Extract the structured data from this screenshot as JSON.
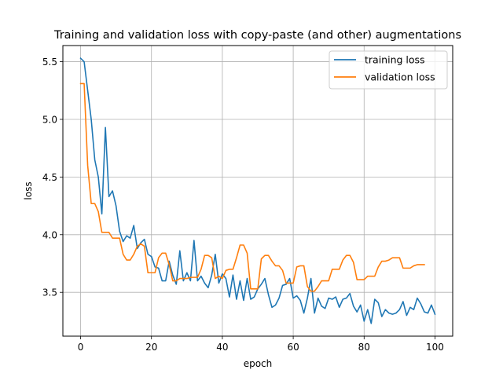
{
  "chart_data": {
    "type": "line",
    "title": "Training and validation loss with copy-paste (and other) augmentations",
    "xlabel": "epoch",
    "ylabel": "loss",
    "xlim": [
      -5,
      105
    ],
    "ylim": [
      3.12,
      5.64
    ],
    "xticks": [
      0,
      20,
      40,
      60,
      80,
      100
    ],
    "yticks": [
      3.5,
      4.0,
      4.5,
      5.0,
      5.5
    ],
    "grid": true,
    "legend_position": "top-right",
    "series": [
      {
        "name": "training loss",
        "color": "#1f77b4",
        "x": [
          0,
          1,
          2,
          3,
          4,
          5,
          6,
          7,
          8,
          9,
          10,
          11,
          12,
          13,
          14,
          15,
          16,
          17,
          18,
          19,
          20,
          21,
          22,
          23,
          24,
          25,
          26,
          27,
          28,
          29,
          30,
          31,
          32,
          33,
          34,
          35,
          36,
          37,
          38,
          39,
          40,
          41,
          42,
          43,
          44,
          45,
          46,
          47,
          48,
          49,
          50,
          51,
          52,
          53,
          54,
          55,
          56,
          57,
          58,
          59,
          60,
          61,
          62,
          63,
          64,
          65,
          66,
          67,
          68,
          69,
          70,
          71,
          72,
          73,
          74,
          75,
          76,
          77,
          78,
          79,
          80,
          81,
          82,
          83,
          84,
          85,
          86,
          87,
          88,
          89,
          90,
          91,
          92,
          93,
          94,
          95,
          96,
          97,
          98,
          99,
          100
        ],
        "y": [
          5.53,
          5.5,
          5.25,
          5.0,
          4.65,
          4.5,
          4.18,
          4.93,
          4.33,
          4.38,
          4.25,
          4.03,
          3.94,
          3.99,
          3.97,
          4.08,
          3.88,
          3.93,
          3.96,
          3.83,
          3.81,
          3.72,
          3.71,
          3.6,
          3.6,
          3.77,
          3.65,
          3.57,
          3.86,
          3.6,
          3.67,
          3.6,
          3.95,
          3.6,
          3.64,
          3.58,
          3.54,
          3.65,
          3.83,
          3.58,
          3.66,
          3.62,
          3.46,
          3.65,
          3.44,
          3.6,
          3.43,
          3.62,
          3.44,
          3.46,
          3.53,
          3.57,
          3.62,
          3.48,
          3.37,
          3.39,
          3.45,
          3.56,
          3.57,
          3.62,
          3.45,
          3.47,
          3.43,
          3.32,
          3.45,
          3.62,
          3.32,
          3.45,
          3.38,
          3.36,
          3.45,
          3.44,
          3.46,
          3.37,
          3.44,
          3.45,
          3.49,
          3.38,
          3.33,
          3.39,
          3.25,
          3.35,
          3.23,
          3.44,
          3.41,
          3.29,
          3.35,
          3.32,
          3.31,
          3.32,
          3.35,
          3.42,
          3.3,
          3.37,
          3.35,
          3.45,
          3.4,
          3.33,
          3.32,
          3.39,
          3.31
        ]
      },
      {
        "name": "validation loss",
        "color": "#ff7f0e",
        "x": [
          0,
          1,
          2,
          3,
          4,
          5,
          6,
          7,
          8,
          9,
          10,
          11,
          12,
          13,
          14,
          15,
          16,
          17,
          18,
          19,
          20,
          21,
          22,
          23,
          24,
          25,
          26,
          27,
          28,
          29,
          30,
          31,
          32,
          33,
          34,
          35,
          36,
          37,
          38,
          39,
          40,
          41,
          42,
          43,
          44,
          45,
          46,
          47,
          48,
          49,
          50,
          51,
          52,
          53,
          54,
          55,
          56,
          57,
          58,
          59,
          60,
          61,
          62,
          63,
          64,
          65,
          66,
          67,
          68,
          69,
          70,
          71,
          72,
          73,
          74,
          75,
          76,
          77,
          78,
          79,
          80,
          81,
          82,
          83,
          84,
          85,
          86,
          87,
          88,
          89,
          90,
          91,
          92,
          93,
          94,
          95,
          96,
          97
        ],
        "y": [
          5.31,
          5.31,
          4.6,
          4.27,
          4.27,
          4.2,
          4.02,
          4.02,
          4.02,
          3.97,
          3.97,
          3.97,
          3.83,
          3.78,
          3.78,
          3.83,
          3.9,
          3.92,
          3.9,
          3.67,
          3.67,
          3.67,
          3.8,
          3.84,
          3.84,
          3.74,
          3.6,
          3.6,
          3.62,
          3.62,
          3.62,
          3.63,
          3.63,
          3.63,
          3.7,
          3.82,
          3.82,
          3.8,
          3.62,
          3.64,
          3.62,
          3.69,
          3.7,
          3.7,
          3.8,
          3.91,
          3.91,
          3.84,
          3.53,
          3.53,
          3.53,
          3.79,
          3.82,
          3.82,
          3.77,
          3.73,
          3.73,
          3.69,
          3.58,
          3.58,
          3.58,
          3.72,
          3.73,
          3.73,
          3.55,
          3.51,
          3.51,
          3.55,
          3.6,
          3.6,
          3.6,
          3.7,
          3.7,
          3.7,
          3.78,
          3.82,
          3.82,
          3.76,
          3.61,
          3.61,
          3.61,
          3.64,
          3.64,
          3.64,
          3.72,
          3.77,
          3.77,
          3.78,
          3.8,
          3.8,
          3.8,
          3.71,
          3.71,
          3.71,
          3.73,
          3.74,
          3.74,
          3.74
        ]
      }
    ]
  }
}
